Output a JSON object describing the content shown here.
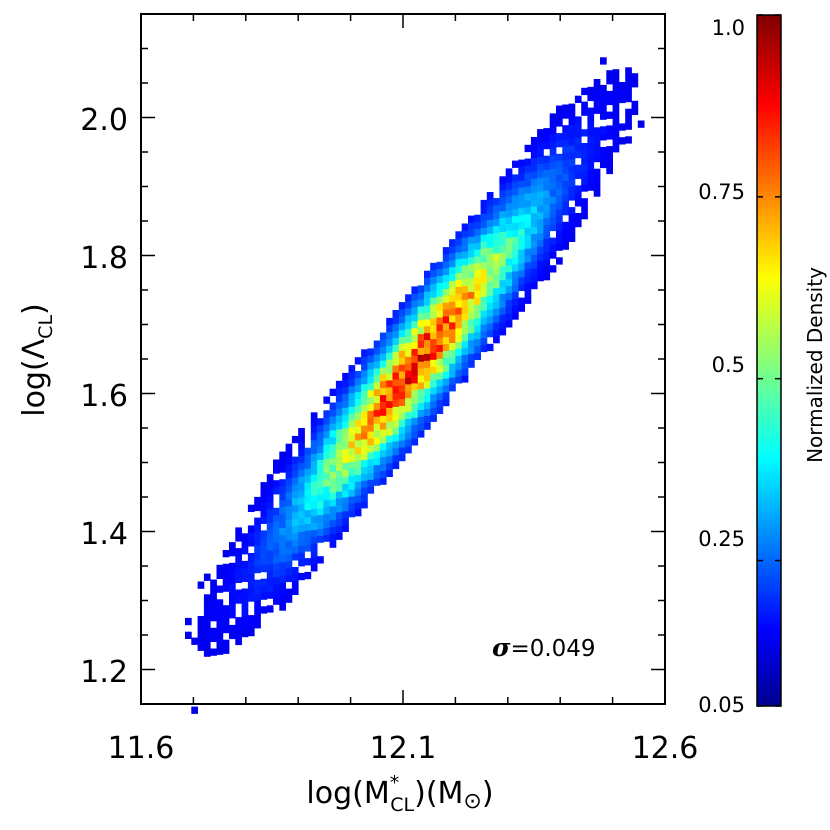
{
  "chart_data": {
    "type": "heatmap",
    "title": "",
    "xlabel": {
      "main": "log(M",
      "sup": "*",
      "sub": "CL",
      "unit_open": ")(M",
      "unit_symbol": "⊙",
      "unit_close": ")"
    },
    "ylabel": {
      "main": "log(Λ",
      "sub": "CL",
      "close": ")"
    },
    "xlim": [
      11.6,
      12.6
    ],
    "ylim": [
      1.15,
      2.15
    ],
    "xticks": [
      11.6,
      12.1,
      12.6
    ],
    "xtick_labels": [
      "11.6",
      "12.1",
      "12.6"
    ],
    "yticks": [
      1.2,
      1.4,
      1.6,
      1.8,
      2.0
    ],
    "ytick_labels": [
      "1.2",
      "1.4",
      "1.6",
      "1.8",
      "2.0"
    ],
    "relation": {
      "slope": 0.95,
      "intercept_at_12_1": 1.62,
      "scatter_dex": 0.049
    },
    "bin_size": {
      "x": 0.012,
      "y": 0.01
    },
    "annotation": {
      "symbol": "σ",
      "text": "=0.049"
    },
    "colorbar": {
      "label": "Normalized Density",
      "range": [
        0.05,
        1.0
      ],
      "ticks": [
        0.05,
        0.25,
        0.5,
        0.75,
        1.0
      ],
      "tick_labels": [
        "0.05",
        "0.25",
        "0.5",
        "0.75",
        "1.0"
      ],
      "colormap": "jet"
    }
  }
}
